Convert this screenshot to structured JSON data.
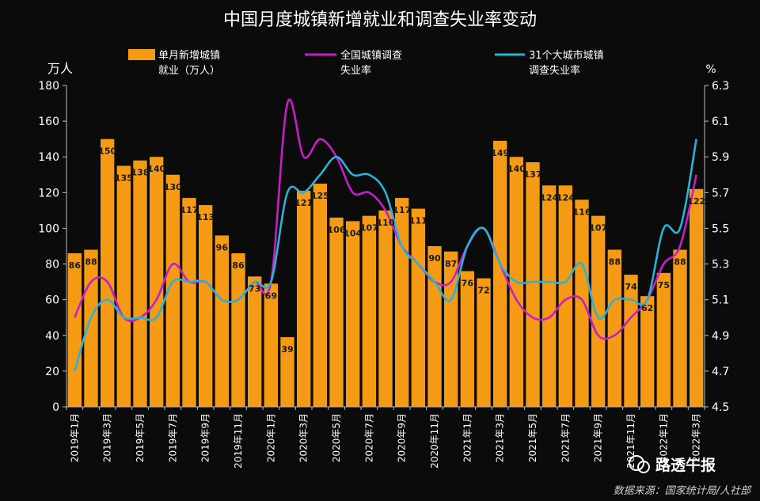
{
  "chart_data": {
    "type": "bar",
    "title": "中国月度城镇新增就业和调查失业率变动",
    "left_unit": "万人",
    "right_unit": "%",
    "ylim_left": [
      0,
      180
    ],
    "yticks_left": [
      "0",
      "20",
      "40",
      "60",
      "80",
      "100",
      "120",
      "140",
      "160",
      "180"
    ],
    "ylim_right": [
      4.5,
      6.3
    ],
    "yticks_right": [
      "4.5",
      "4.7",
      "4.9",
      "5.1",
      "5.3",
      "5.5",
      "5.7",
      "5.9",
      "6.1",
      "6.3"
    ],
    "x_tick_labels": [
      "2019年1月",
      "2019年3月",
      "2019年5月",
      "2019年7月",
      "2019年9月",
      "2019年11月",
      "2020年1月",
      "2020年3月",
      "2020年5月",
      "2020年7月",
      "2020年9月",
      "2020年11月",
      "2021年1月",
      "2021年3月",
      "2021年5月",
      "2021年7月",
      "2021年9月",
      "2021年11月",
      "2022年1月",
      "2022年3月"
    ],
    "legend": [
      {
        "label_line1": "单月新增城镇",
        "label_line2": "就业（万人）",
        "color": "#f59a14",
        "kind": "bar"
      },
      {
        "label_line1": "全国城镇调查",
        "label_line2": "失业率",
        "color": "#c51fc9",
        "kind": "line"
      },
      {
        "label_line1": "31个大城市城镇",
        "label_line2": "调查失业率",
        "color": "#2ab3d6",
        "kind": "line"
      }
    ],
    "bars": {
      "values": [
        86,
        88,
        150,
        135,
        138,
        140,
        130,
        117,
        113,
        96,
        86,
        73,
        69,
        39,
        121,
        125,
        106,
        104,
        107,
        110,
        117,
        111,
        90,
        87,
        76,
        72,
        149,
        140,
        137,
        124,
        124,
        116,
        107,
        88,
        74,
        62,
        75,
        88,
        122
      ],
      "labels": [
        "86",
        "88",
        "150",
        "135",
        "138",
        "140",
        "130",
        "117",
        "113",
        "96",
        "86",
        "73",
        "69",
        "39",
        "121",
        "125",
        "106",
        "104",
        "107",
        "110",
        "117",
        "111",
        "90",
        "87",
        "76",
        "72",
        "149",
        "140",
        "137",
        "124",
        "124",
        "116",
        "107",
        "88",
        "74",
        "62",
        "75",
        "88",
        "122"
      ]
    },
    "series": [
      {
        "name": "全国城镇调查失业率",
        "values": [
          5.0,
          5.2,
          5.2,
          5.0,
          5.0,
          5.1,
          5.3,
          5.2,
          5.2,
          5.1,
          5.1,
          5.2,
          5.2,
          6.2,
          5.9,
          6.0,
          5.9,
          5.7,
          5.7,
          5.6,
          5.4,
          5.3,
          5.2,
          5.2,
          5.4,
          5.5,
          5.3,
          5.1,
          5.0,
          5.0,
          5.1,
          5.1,
          4.9,
          4.9,
          5.0,
          5.1,
          5.3,
          5.4,
          5.8
        ]
      },
      {
        "name": "31个大城市城镇调查失业率",
        "values": [
          4.7,
          5.0,
          5.1,
          5.0,
          5.0,
          5.0,
          5.2,
          5.2,
          5.2,
          5.1,
          5.1,
          5.2,
          5.2,
          5.7,
          5.7,
          5.8,
          5.9,
          5.8,
          5.8,
          5.7,
          5.4,
          5.3,
          5.2,
          5.1,
          5.4,
          5.5,
          5.3,
          5.2,
          5.2,
          5.2,
          5.2,
          5.3,
          5.0,
          5.1,
          5.1,
          5.1,
          5.5,
          5.5,
          6.0
        ]
      }
    ]
  },
  "watermark": "路透午报",
  "source_note": "数据来源：国家统计局/人社部"
}
